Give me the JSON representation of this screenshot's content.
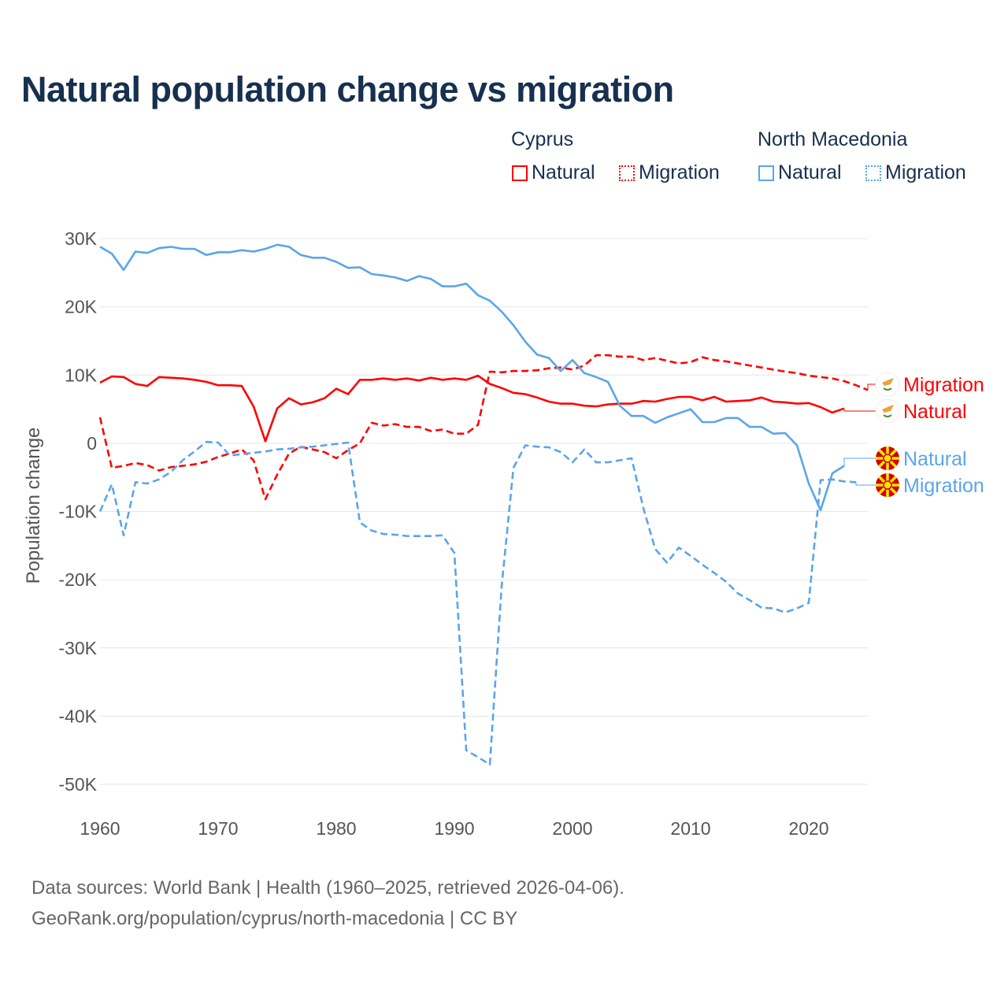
{
  "title": "Natural population change vs migration",
  "legend": {
    "groups": [
      {
        "name": "Cyprus",
        "color": "#ff0000",
        "items": [
          "Natural",
          "Migration"
        ]
      },
      {
        "name": "North Macedonia",
        "color": "#5aa5ec",
        "items": [
          "Natural",
          "Migration"
        ]
      }
    ]
  },
  "footer": {
    "line1": "Data sources: World Bank | Health (1960–2025, retrieved 2026-04-06).",
    "line2": "GeoRank.org/population/cyprus/north-macedonia | CC BY"
  },
  "chart_data": {
    "type": "line",
    "title": "Natural population change vs migration",
    "xlabel": "",
    "ylabel": "Population change",
    "xlim": [
      1960,
      2025
    ],
    "ylim": [
      -50000,
      30000
    ],
    "xticks": [
      1960,
      1970,
      1980,
      1990,
      2000,
      2010,
      2020
    ],
    "yticks": [
      {
        "v": 30000,
        "l": "30K"
      },
      {
        "v": 20000,
        "l": "20K"
      },
      {
        "v": 10000,
        "l": "10K"
      },
      {
        "v": 0,
        "l": "0"
      },
      {
        "v": -10000,
        "l": "-10K"
      },
      {
        "v": -20000,
        "l": "-20K"
      },
      {
        "v": -30000,
        "l": "-30K"
      },
      {
        "v": -40000,
        "l": "-40K"
      },
      {
        "v": -50000,
        "l": "-50K"
      }
    ],
    "grid": true,
    "series": [
      {
        "name": "Cyprus Natural",
        "label": "Natural",
        "color": "#ff0000",
        "dash": false,
        "flag": "cyprus",
        "start": 1960,
        "values": [
          8900,
          9800,
          9700,
          8700,
          8400,
          9700,
          9600,
          9500,
          9300,
          9000,
          8500,
          8500,
          8400,
          5400,
          300,
          5100,
          6600,
          5700,
          6000,
          6600,
          8000,
          7200,
          9300,
          9300,
          9500,
          9300,
          9500,
          9200,
          9600,
          9300,
          9500,
          9300,
          9900,
          8700,
          8100,
          7400,
          7200,
          6700,
          6100,
          5800,
          5800,
          5500,
          5400,
          5700,
          5800,
          5800,
          6200,
          6100,
          6500,
          6800,
          6800,
          6300,
          6800,
          6100,
          6200,
          6300,
          6700,
          6100,
          6000,
          5800,
          5900,
          5300,
          4500,
          5100
        ]
      },
      {
        "name": "Cyprus Migration",
        "label": "Migration",
        "color": "#ff0000",
        "dash": true,
        "flag": "cyprus",
        "start": 1960,
        "values": [
          3800,
          -3600,
          -3300,
          -2900,
          -3200,
          -4000,
          -3500,
          -3300,
          -3100,
          -2700,
          -2000,
          -1500,
          -900,
          -2500,
          -8200,
          -4600,
          -1500,
          -500,
          -900,
          -1300,
          -2200,
          -1000,
          0,
          3000,
          2600,
          2800,
          2400,
          2400,
          1800,
          2000,
          1400,
          1400,
          2700,
          10500,
          10400,
          10600,
          10600,
          10700,
          11000,
          11100,
          10800,
          11400,
          12900,
          12900,
          12700,
          12700,
          12200,
          12500,
          12100,
          11700,
          11900,
          12600,
          12200,
          12000,
          11700,
          11400,
          11100,
          10800,
          10500,
          10300,
          9900,
          9700,
          9500,
          9100,
          8500,
          7800
        ]
      },
      {
        "name": "North Macedonia Natural",
        "label": "Natural",
        "color": "#5aa5ec",
        "dash": false,
        "flag": "north-macedonia",
        "start": 1960,
        "values": [
          28800,
          27800,
          25400,
          28100,
          27900,
          28600,
          28800,
          28500,
          28500,
          27600,
          28000,
          28000,
          28300,
          28100,
          28500,
          29100,
          28800,
          27600,
          27200,
          27200,
          26600,
          25700,
          25800,
          24800,
          24600,
          24300,
          23800,
          24500,
          24100,
          23000,
          23000,
          23400,
          21700,
          20900,
          19300,
          17300,
          14900,
          13000,
          12500,
          10600,
          12200,
          10300,
          9700,
          9000,
          5500,
          4000,
          4000,
          3000,
          3800,
          4400,
          5000,
          3100,
          3100,
          3700,
          3700,
          2400,
          2400,
          1400,
          1500,
          -300,
          -5900,
          -9800,
          -4400,
          -3300
        ]
      },
      {
        "name": "North Macedonia Migration",
        "label": "Migration",
        "color": "#5aa5ec",
        "dash": true,
        "flag": "north-macedonia",
        "start": 1960,
        "values": [
          -10000,
          -6000,
          -13500,
          -5700,
          -5900,
          -5300,
          -4200,
          -2500,
          -1200,
          200,
          100,
          -1800,
          -1600,
          -1400,
          -1200,
          -900,
          -800,
          -600,
          -500,
          -300,
          -100,
          100,
          -11600,
          -12800,
          -13300,
          -13400,
          -13600,
          -13600,
          -13600,
          -13500,
          -16100,
          -45000,
          -46000,
          -47100,
          -21000,
          -3600,
          -300,
          -500,
          -600,
          -1300,
          -2800,
          -900,
          -2800,
          -2800,
          -2500,
          -2200,
          -9500,
          -15500,
          -17500,
          -15300,
          -16500,
          -17800,
          -19000,
          -20300,
          -22000,
          -23000,
          -24100,
          -24200,
          -24800,
          -24200,
          -23400,
          -5400,
          -5300,
          -5600,
          -5700
        ]
      }
    ]
  }
}
